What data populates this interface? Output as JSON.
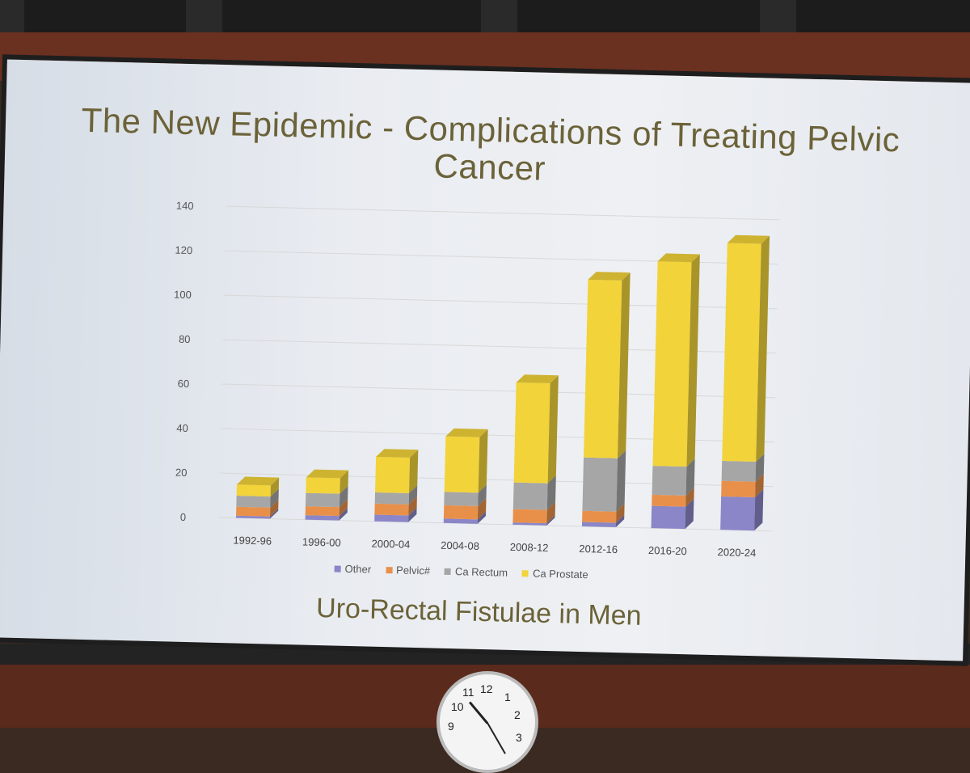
{
  "slide": {
    "title": "The New Epidemic - Complications of Treating Pelvic Cancer",
    "subtitle": "Uro-Rectal Fistulae in Men"
  },
  "colors": {
    "other": "#8a86c8",
    "pelvic": "#e8904a",
    "ca_rectum": "#a6a6a6",
    "ca_prostate": "#f2d33a"
  },
  "clock": {
    "numbers": [
      "12",
      "1",
      "2",
      "3",
      "9",
      "10",
      "11"
    ]
  },
  "chart_data": {
    "type": "bar",
    "stacked": true,
    "categories": [
      "1992-96",
      "1996-00",
      "2000-04",
      "2004-08",
      "2008-12",
      "2012-16",
      "2016-20",
      "2020-24"
    ],
    "series": [
      {
        "name": "Other",
        "values": [
          1,
          2,
          3,
          2,
          1,
          2,
          10,
          15
        ]
      },
      {
        "name": "Pelvic#",
        "values": [
          4,
          4,
          5,
          6,
          6,
          5,
          5,
          7
        ]
      },
      {
        "name": "Ca Rectum",
        "values": [
          5,
          6,
          5,
          6,
          12,
          24,
          13,
          9
        ]
      },
      {
        "name": "Ca Prostate",
        "values": [
          5,
          7,
          16,
          25,
          45,
          80,
          92,
          98
        ]
      }
    ],
    "yticks": [
      0,
      20,
      40,
      60,
      80,
      100,
      120,
      140
    ],
    "ylim": [
      0,
      140
    ],
    "legend_position": "bottom",
    "grid": true
  }
}
